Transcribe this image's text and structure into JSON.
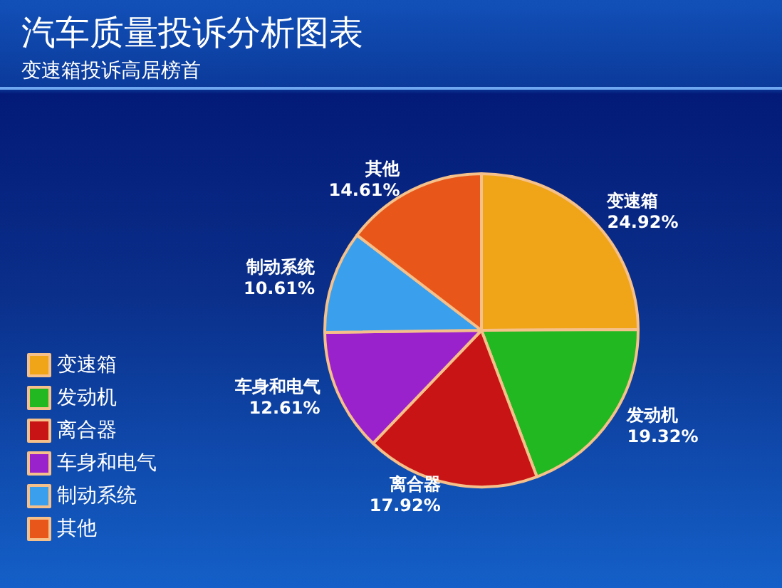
{
  "chart_data": {
    "type": "pie",
    "title": "汽车质量投诉分析图表",
    "subtitle": "变速箱投诉高居榜首",
    "categories": [
      "变速箱",
      "发动机",
      "离合器",
      "车身和电气",
      "制动系统",
      "其他"
    ],
    "values": [
      24.92,
      19.32,
      17.92,
      12.61,
      10.61,
      14.61
    ],
    "value_labels": [
      "24.92%",
      "19.32%",
      "17.92%",
      "12.61%",
      "10.61%",
      "14.61%"
    ],
    "colors": [
      "#f0a418",
      "#22b822",
      "#c81414",
      "#9a22cc",
      "#3aa0ee",
      "#e8561a"
    ],
    "legend": "left"
  }
}
